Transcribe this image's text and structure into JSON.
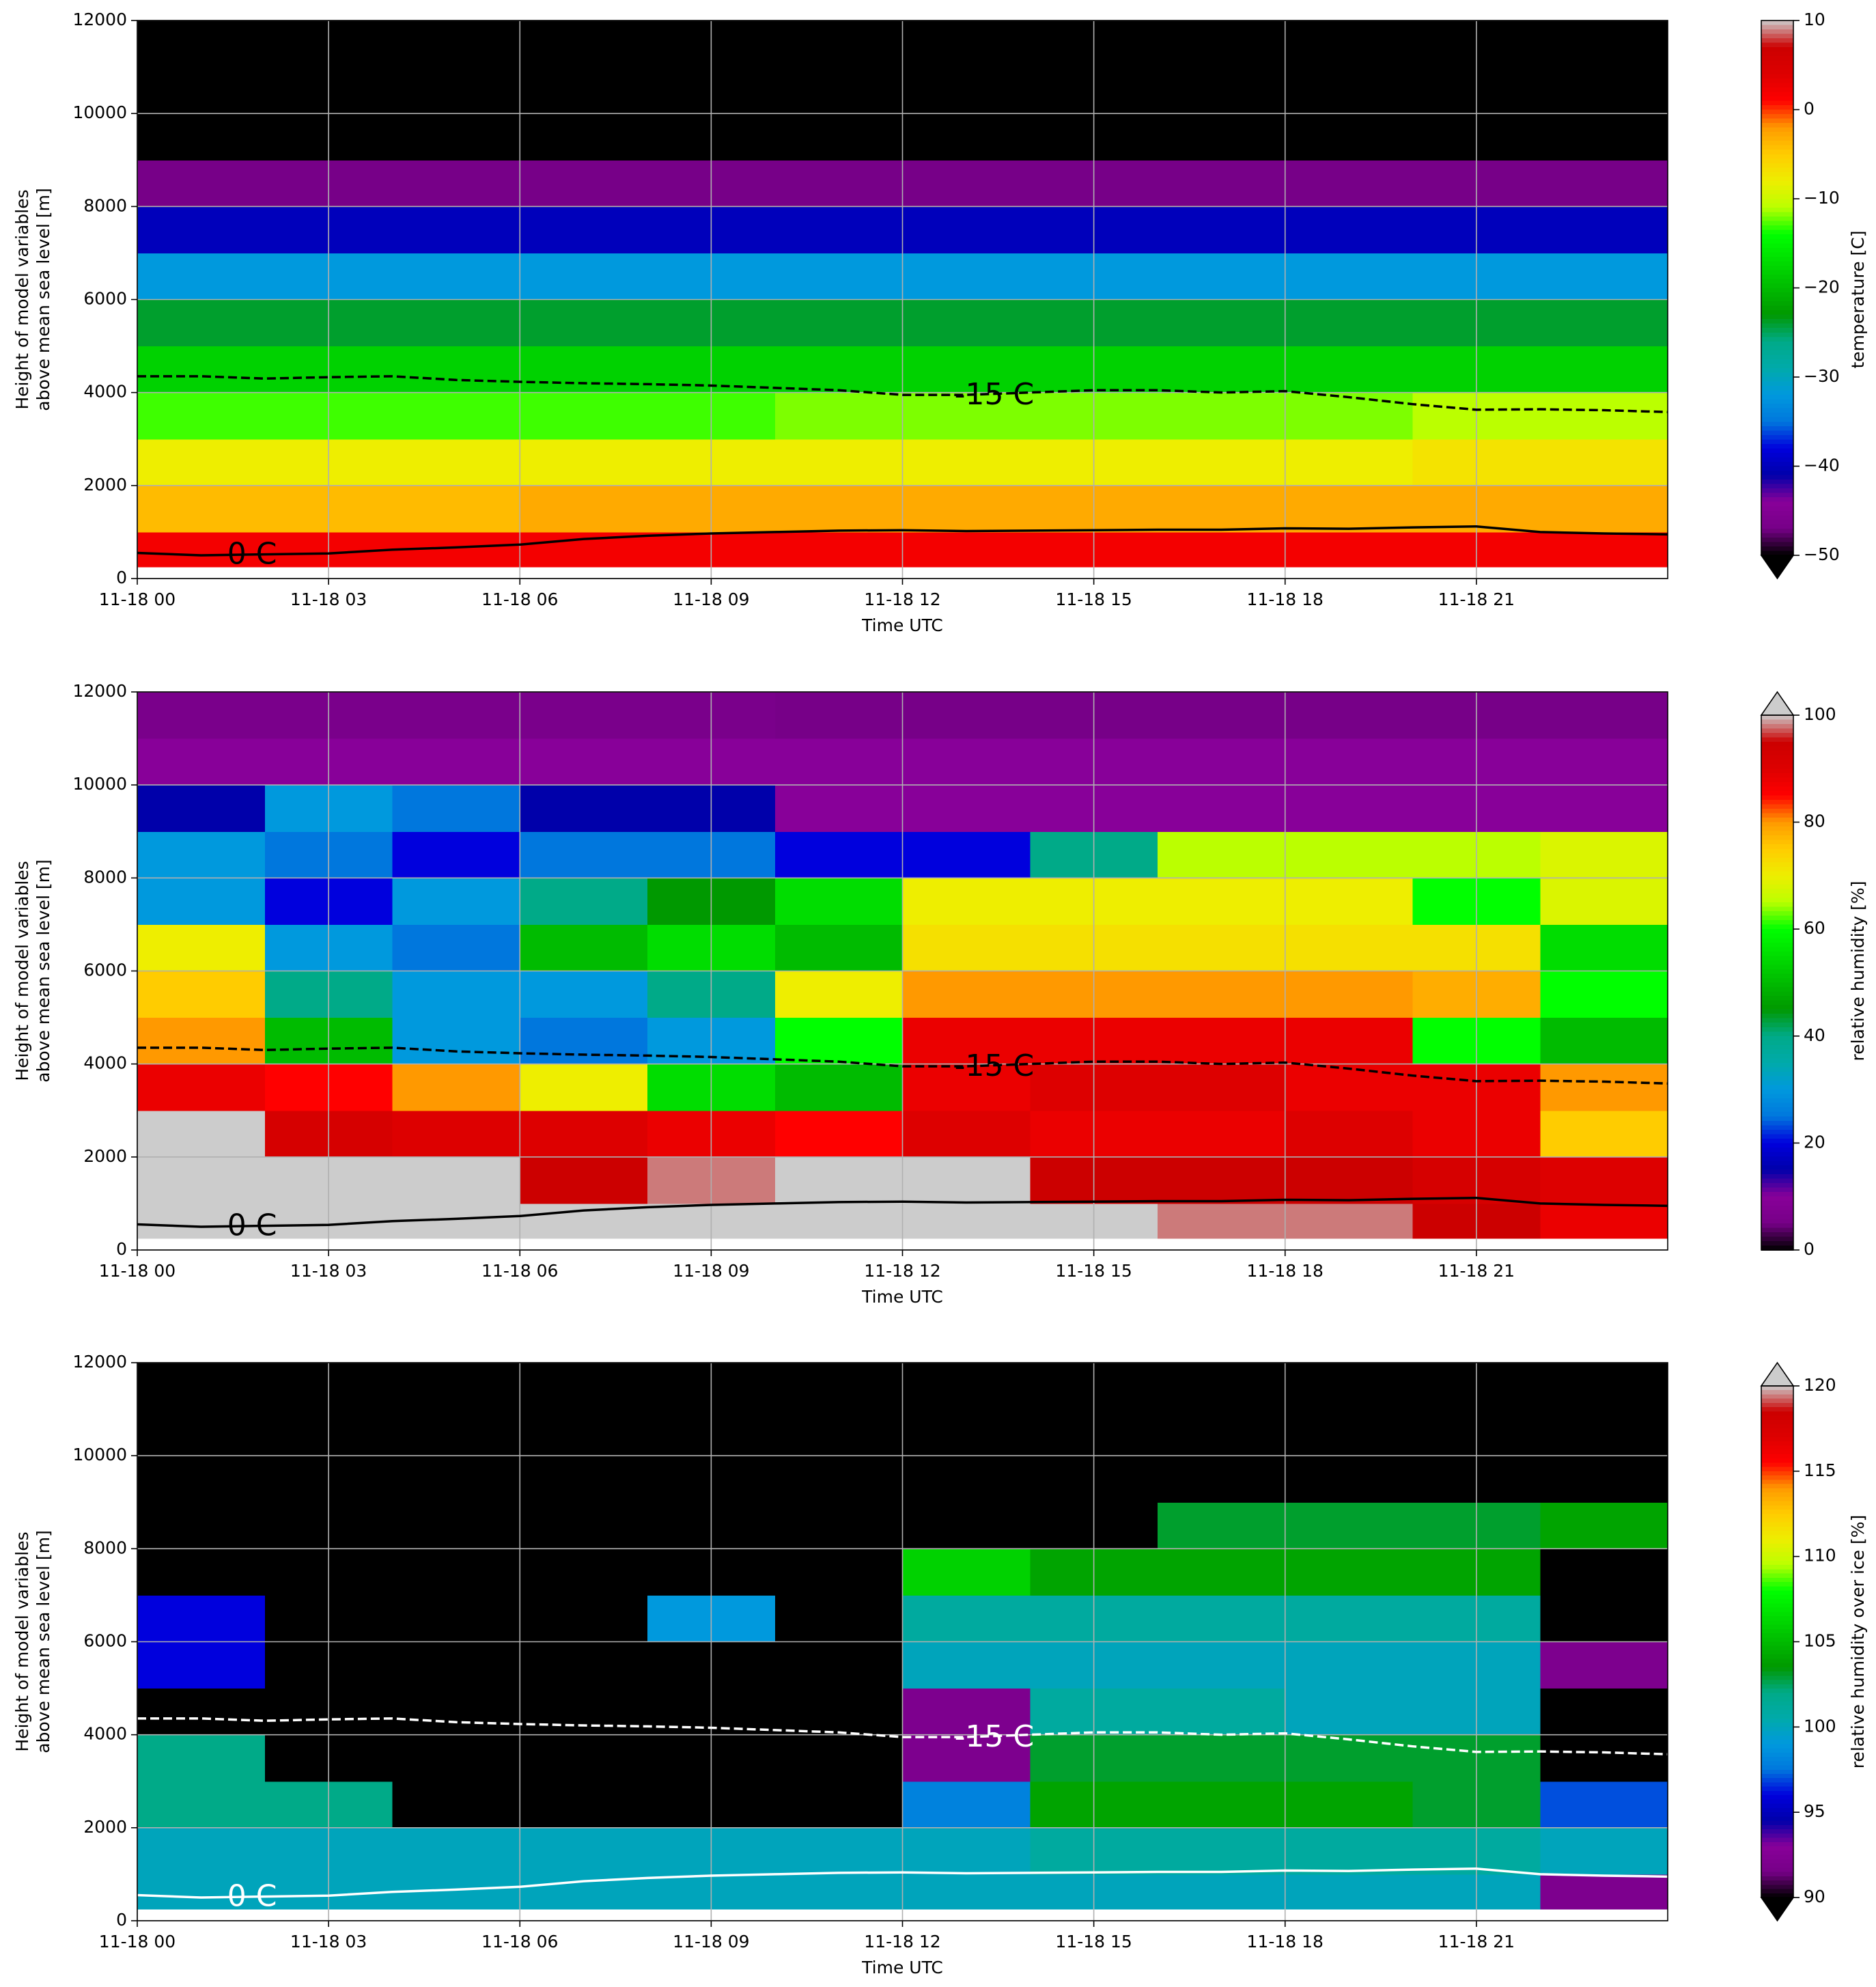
{
  "chart_data": [
    {
      "type": "heatmap",
      "xlabel": "Time UTC",
      "ylabel": [
        "Height of model variables",
        "above mean sea level [m]"
      ],
      "xlim": [
        0,
        24
      ],
      "ylim": [
        0,
        12000
      ],
      "grid": true,
      "colormap": "nipy_spectral",
      "xticks": [
        {
          "value": 0,
          "label": "11-18 00"
        },
        {
          "value": 3,
          "label": "11-18 03"
        },
        {
          "value": 6,
          "label": "11-18 06"
        },
        {
          "value": 9,
          "label": "11-18 09"
        },
        {
          "value": 12,
          "label": "11-18 12"
        },
        {
          "value": 15,
          "label": "11-18 15"
        },
        {
          "value": 18,
          "label": "11-18 18"
        },
        {
          "value": 21,
          "label": "11-18 21"
        }
      ],
      "yticks": [
        0,
        2000,
        4000,
        6000,
        8000,
        10000,
        12000
      ],
      "x_edges": [
        0,
        2,
        4,
        6,
        8,
        10,
        12,
        14,
        16,
        18,
        20,
        22,
        24
      ],
      "y_edges": [
        250,
        1000,
        2000,
        3000,
        4000,
        5000,
        6000,
        7000,
        8000,
        9000,
        10000,
        11000,
        12000
      ],
      "z": [
        [
          2,
          2,
          2,
          2,
          2,
          2,
          2,
          2,
          2,
          2,
          2,
          2
        ],
        [
          -4,
          -4,
          -4,
          -3,
          -3,
          -3,
          -3,
          -3,
          -3,
          -3,
          -3,
          -3
        ],
        [
          -8,
          -8,
          -8,
          -8,
          -8,
          -8,
          -8,
          -8,
          -8,
          -8,
          -7,
          -7
        ],
        [
          -13,
          -13,
          -13,
          -13,
          -13,
          -12,
          -12,
          -12,
          -12,
          -12,
          -11,
          -11
        ],
        [
          -18,
          -18,
          -18,
          -18,
          -18,
          -18,
          -18,
          -18,
          -18,
          -18,
          -18,
          -18
        ],
        [
          -24,
          -24,
          -24,
          -24,
          -24,
          -24,
          -24,
          -24,
          -24,
          -24,
          -24,
          -24
        ],
        [
          -32,
          -32,
          -32,
          -32,
          -32,
          -32,
          -32,
          -32,
          -32,
          -32,
          -32,
          -32
        ],
        [
          -40,
          -40,
          -40,
          -40,
          -40,
          -40,
          -40,
          -40,
          -40,
          -40,
          -40,
          -40
        ],
        [
          -47,
          -47,
          -47,
          -47,
          -47,
          -47,
          -47,
          -47,
          -47,
          -47,
          -47,
          -47
        ],
        [
          -55,
          -55,
          -55,
          -55,
          -55,
          -55,
          -55,
          -52,
          -52,
          -52,
          -55,
          -55
        ],
        [
          -58,
          -58,
          -58,
          -58,
          -58,
          -58,
          -58,
          -58,
          -58,
          -58,
          -58,
          -58
        ],
        [
          -60,
          -60,
          -60,
          -60,
          -60,
          -60,
          -60,
          -60,
          -60,
          -60,
          -60,
          -60
        ]
      ],
      "contours": [
        {
          "label": "0 C",
          "color": "#000000",
          "linestyle": "solid",
          "x": [
            0,
            1,
            2,
            3,
            4,
            5,
            6,
            7,
            8,
            9,
            10,
            11,
            12,
            13,
            14,
            15,
            16,
            17,
            18,
            19,
            20,
            21,
            22,
            23,
            24
          ],
          "y": [
            550,
            500,
            520,
            540,
            620,
            670,
            730,
            850,
            920,
            970,
            1000,
            1030,
            1040,
            1020,
            1030,
            1040,
            1050,
            1050,
            1080,
            1070,
            1100,
            1120,
            1000,
            970,
            950
          ]
        },
        {
          "label": "-15 C",
          "color": "#000000",
          "linestyle": "dashed",
          "x": [
            0,
            1,
            2,
            3,
            4,
            5,
            6,
            7,
            8,
            9,
            10,
            11,
            12,
            13,
            14,
            15,
            16,
            17,
            18,
            19,
            20,
            21,
            22,
            23,
            24
          ],
          "y": [
            4350,
            4350,
            4300,
            4330,
            4350,
            4270,
            4230,
            4200,
            4180,
            4150,
            4100,
            4050,
            3950,
            3950,
            4000,
            4050,
            4050,
            4000,
            4030,
            3900,
            3750,
            3630,
            3640,
            3620,
            3580
          ]
        }
      ],
      "colorbar": {
        "label": "temperature [C]",
        "lim": [
          -50,
          10
        ],
        "extend": "min",
        "ticks": [
          {
            "value": -50,
            "label": "−50"
          },
          {
            "value": -40,
            "label": "−40"
          },
          {
            "value": -30,
            "label": "−30"
          },
          {
            "value": -20,
            "label": "−20"
          },
          {
            "value": -10,
            "label": "−10"
          },
          0,
          10
        ]
      }
    },
    {
      "type": "heatmap",
      "xlabel": "Time UTC",
      "ylabel": [
        "Height of model variables",
        "above mean sea level [m]"
      ],
      "xlim": [
        0,
        24
      ],
      "ylim": [
        0,
        12000
      ],
      "grid": true,
      "colormap": "nipy_spectral",
      "xticks": [
        {
          "value": 0,
          "label": "11-18 00"
        },
        {
          "value": 3,
          "label": "11-18 03"
        },
        {
          "value": 6,
          "label": "11-18 06"
        },
        {
          "value": 9,
          "label": "11-18 09"
        },
        {
          "value": 12,
          "label": "11-18 12"
        },
        {
          "value": 15,
          "label": "11-18 15"
        },
        {
          "value": 18,
          "label": "11-18 18"
        },
        {
          "value": 21,
          "label": "11-18 21"
        }
      ],
      "yticks": [
        0,
        2000,
        4000,
        6000,
        8000,
        10000,
        12000
      ],
      "x_edges": [
        0,
        2,
        4,
        6,
        8,
        10,
        12,
        14,
        16,
        18,
        20,
        22,
        24
      ],
      "y_edges": [
        250,
        1000,
        2000,
        3000,
        4000,
        5000,
        6000,
        7000,
        8000,
        9000,
        10000,
        11000,
        12000
      ],
      "z": [
        [
          100,
          100,
          100,
          100,
          100,
          100,
          100,
          100,
          98,
          98,
          95,
          88
        ],
        [
          100,
          100,
          100,
          95,
          98,
          100,
          100,
          95,
          95,
          95,
          92,
          90
        ],
        [
          100,
          92,
          90,
          90,
          88,
          85,
          90,
          88,
          88,
          90,
          88,
          75
        ],
        [
          88,
          85,
          80,
          70,
          55,
          50,
          88,
          90,
          90,
          88,
          88,
          80
        ],
        [
          80,
          50,
          30,
          25,
          30,
          60,
          88,
          88,
          88,
          88,
          60,
          50
        ],
        [
          75,
          40,
          30,
          30,
          40,
          70,
          80,
          80,
          80,
          80,
          78,
          60
        ],
        [
          70,
          30,
          25,
          50,
          55,
          50,
          72,
          72,
          72,
          72,
          72,
          55
        ],
        [
          30,
          20,
          30,
          40,
          45,
          55,
          70,
          70,
          70,
          70,
          60,
          68
        ],
        [
          30,
          25,
          20,
          25,
          25,
          20,
          20,
          40,
          65,
          65,
          65,
          68
        ],
        [
          15,
          30,
          25,
          15,
          15,
          10,
          10,
          10,
          10,
          10,
          10,
          10
        ],
        [
          10,
          10,
          10,
          10,
          10,
          10,
          10,
          10,
          10,
          10,
          10,
          10
        ],
        [
          6,
          6,
          6,
          6,
          6,
          5,
          5,
          5,
          5,
          5,
          5,
          5
        ]
      ],
      "contours": [
        {
          "label": "0 C",
          "color": "#000000",
          "linestyle": "solid",
          "x": [
            0,
            1,
            2,
            3,
            4,
            5,
            6,
            7,
            8,
            9,
            10,
            11,
            12,
            13,
            14,
            15,
            16,
            17,
            18,
            19,
            20,
            21,
            22,
            23,
            24
          ],
          "y": [
            550,
            500,
            520,
            540,
            620,
            670,
            730,
            850,
            920,
            970,
            1000,
            1030,
            1040,
            1020,
            1030,
            1040,
            1050,
            1050,
            1080,
            1070,
            1100,
            1120,
            1000,
            970,
            950
          ]
        },
        {
          "label": "-15 C",
          "color": "#000000",
          "linestyle": "dashed",
          "x": [
            0,
            1,
            2,
            3,
            4,
            5,
            6,
            7,
            8,
            9,
            10,
            11,
            12,
            13,
            14,
            15,
            16,
            17,
            18,
            19,
            20,
            21,
            22,
            23,
            24
          ],
          "y": [
            4350,
            4350,
            4300,
            4330,
            4350,
            4270,
            4230,
            4200,
            4180,
            4150,
            4100,
            4050,
            3950,
            3950,
            4000,
            4050,
            4050,
            4000,
            4030,
            3900,
            3750,
            3630,
            3640,
            3620,
            3580
          ]
        }
      ],
      "colorbar": {
        "label": "relative humidity [%]",
        "lim": [
          0,
          100
        ],
        "extend": "max",
        "ticks": [
          0,
          20,
          40,
          60,
          80,
          100
        ]
      }
    },
    {
      "type": "heatmap",
      "xlabel": "Time UTC",
      "ylabel": [
        "Height of model variables",
        "above mean sea level [m]"
      ],
      "xlim": [
        0,
        24
      ],
      "ylim": [
        0,
        12000
      ],
      "grid": true,
      "colormap": "nipy_spectral",
      "xticks": [
        {
          "value": 0,
          "label": "11-18 00"
        },
        {
          "value": 3,
          "label": "11-18 03"
        },
        {
          "value": 6,
          "label": "11-18 06"
        },
        {
          "value": 9,
          "label": "11-18 09"
        },
        {
          "value": 12,
          "label": "11-18 12"
        },
        {
          "value": 15,
          "label": "11-18 15"
        },
        {
          "value": 18,
          "label": "11-18 18"
        },
        {
          "value": 21,
          "label": "11-18 21"
        }
      ],
      "yticks": [
        0,
        2000,
        4000,
        6000,
        8000,
        10000,
        12000
      ],
      "x_edges": [
        0,
        2,
        4,
        6,
        8,
        10,
        12,
        14,
        16,
        18,
        20,
        22,
        24
      ],
      "y_edges": [
        250,
        1000,
        2000,
        3000,
        4000,
        5000,
        6000,
        7000,
        8000,
        9000,
        10000,
        11000,
        12000
      ],
      "z": [
        [
          100,
          100,
          100,
          100,
          100,
          100,
          100,
          100,
          100,
          100,
          100,
          92
        ],
        [
          100,
          100,
          100,
          100,
          100,
          100,
          100,
          101,
          101,
          101,
          101,
          100
        ],
        [
          102,
          102,
          89,
          89,
          89,
          89,
          98,
          104,
          104,
          104,
          103,
          97
        ],
        [
          102,
          85,
          85,
          85,
          85,
          85,
          92,
          103,
          103,
          103,
          103,
          85
        ],
        [
          85,
          85,
          85,
          85,
          85,
          85,
          92,
          101,
          101,
          100,
          100,
          85
        ],
        [
          96,
          85,
          85,
          85,
          85,
          85,
          100,
          100,
          100,
          100,
          100,
          92
        ],
        [
          96,
          85,
          85,
          85,
          99,
          85,
          101,
          101,
          101,
          101,
          101,
          85
        ],
        [
          85,
          85,
          85,
          85,
          85,
          85,
          106,
          104,
          104,
          104,
          104,
          85
        ],
        [
          85,
          85,
          85,
          85,
          85,
          85,
          85,
          85,
          103,
          103,
          103,
          104
        ],
        [
          85,
          85,
          85,
          85,
          85,
          85,
          85,
          85,
          85,
          85,
          85,
          85
        ],
        [
          85,
          85,
          85,
          85,
          85,
          85,
          85,
          85,
          85,
          85,
          85,
          85
        ],
        [
          85,
          85,
          85,
          85,
          85,
          85,
          85,
          85,
          85,
          85,
          85,
          85
        ]
      ],
      "contours": [
        {
          "label": "0 C",
          "color": "#ffffff",
          "linestyle": "solid",
          "x": [
            0,
            1,
            2,
            3,
            4,
            5,
            6,
            7,
            8,
            9,
            10,
            11,
            12,
            13,
            14,
            15,
            16,
            17,
            18,
            19,
            20,
            21,
            22,
            23,
            24
          ],
          "y": [
            550,
            500,
            520,
            540,
            620,
            670,
            730,
            850,
            920,
            970,
            1000,
            1030,
            1040,
            1020,
            1030,
            1040,
            1050,
            1050,
            1080,
            1070,
            1100,
            1120,
            1000,
            970,
            950
          ]
        },
        {
          "label": "-15 C",
          "color": "#ffffff",
          "linestyle": "dashed",
          "x": [
            0,
            1,
            2,
            3,
            4,
            5,
            6,
            7,
            8,
            9,
            10,
            11,
            12,
            13,
            14,
            15,
            16,
            17,
            18,
            19,
            20,
            21,
            22,
            23,
            24
          ],
          "y": [
            4350,
            4350,
            4300,
            4330,
            4350,
            4270,
            4230,
            4200,
            4180,
            4150,
            4100,
            4050,
            3950,
            3950,
            4000,
            4050,
            4050,
            4000,
            4030,
            3900,
            3750,
            3630,
            3640,
            3620,
            3580
          ]
        }
      ],
      "colorbar": {
        "label": "relative humidity over ice [%]",
        "lim": [
          90,
          120
        ],
        "extend": "both",
        "ticks": [
          90,
          95,
          100,
          105,
          110,
          115,
          120
        ]
      }
    }
  ]
}
